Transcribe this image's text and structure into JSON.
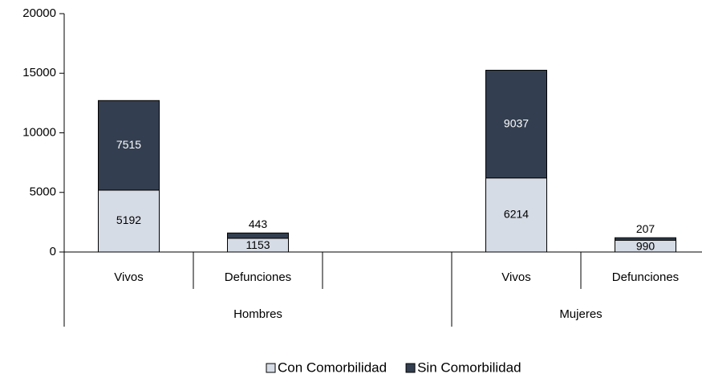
{
  "chart_data": {
    "type": "stacked-bar",
    "categories": [
      "Vivos",
      "Defunciones",
      null,
      "Vivos",
      "Defunciones"
    ],
    "groups": [
      {
        "name": "Hombres",
        "span": [
          0,
          2
        ]
      },
      {
        "name": "Mujeres",
        "span": [
          3,
          4
        ]
      }
    ],
    "series": [
      {
        "name": "Con Comorbilidad",
        "color": "#d6dce5",
        "values": [
          5192,
          1153,
          null,
          6214,
          990
        ]
      },
      {
        "name": "Sin Comorbilidad",
        "color": "#333f50",
        "values": [
          7515,
          443,
          null,
          9037,
          207
        ]
      }
    ],
    "ylim": [
      0,
      20000
    ],
    "yticks": [
      0,
      5000,
      10000,
      15000,
      20000
    ],
    "legend": "bottom"
  }
}
